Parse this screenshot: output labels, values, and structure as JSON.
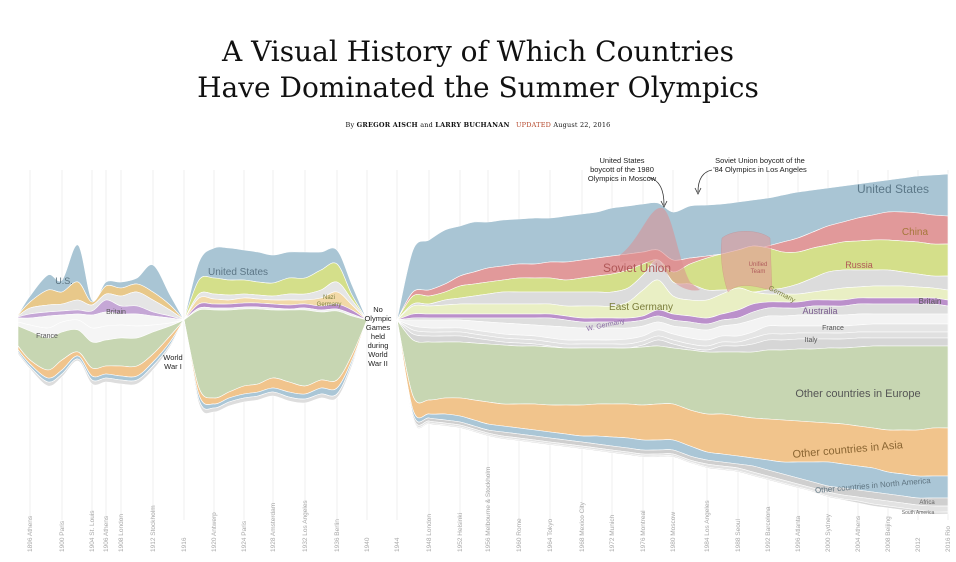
{
  "header": {
    "title_line1": "A Visual History of Which Countries",
    "title_line2": "Have Dominated the Summer Olympics",
    "byline_prefix": "By",
    "author1": "GREGOR AISCH",
    "byline_and": "and",
    "author2": "LARRY BUCHANAN",
    "updated_label": "UPDATED",
    "updated_date": "August 22, 2016"
  },
  "chart_data": {
    "type": "area",
    "title": "A Visual History of Which Countries Have Dominated the Summer Olympics",
    "x": [
      "1896 Athens",
      "1900 Paris",
      "1904 St. Louis",
      "1906 Athens",
      "1908 London",
      "1912 Stockholm",
      "1916",
      "1920 Antwerp",
      "1924 Paris",
      "1928 Amsterdam",
      "1932 Los Angeles",
      "1936 Berlin",
      "1940",
      "1944",
      "1948 London",
      "1952 Helsinki",
      "1956 Melbourne & Stockholm",
      "1960 Rome",
      "1964 Tokyo",
      "1968 Mexico City",
      "1972 Munich",
      "1976 Montreal",
      "1980 Moscow",
      "1984 Los Angeles",
      "1988 Seoul",
      "1992 Barcelona",
      "1996 Atlanta",
      "2000 Sydney",
      "2004 Athens",
      "2008 Beijing",
      "2012",
      "2016 Rio"
    ],
    "series_labels": [
      {
        "name": "U.S.",
        "year": 1896
      },
      {
        "name": "France",
        "year": 1896
      },
      {
        "name": "Britain",
        "year": 1908
      },
      {
        "name": "United States",
        "year": 1920
      },
      {
        "name": "Nazi Germany",
        "year": 1936
      },
      {
        "name": "Soviet Union",
        "year": 1956
      },
      {
        "name": "East Germany",
        "year": 1968
      },
      {
        "name": "W. Germany",
        "year": 1964
      },
      {
        "name": "Unified Team",
        "year": 1992
      },
      {
        "name": "Germany",
        "year": 1992
      },
      {
        "name": "United States",
        "year": 2008
      },
      {
        "name": "China",
        "year": 2012
      },
      {
        "name": "Russia",
        "year": 2000
      },
      {
        "name": "Britain",
        "year": 2016
      },
      {
        "name": "Australia",
        "year": 2004
      },
      {
        "name": "France",
        "year": 2000
      },
      {
        "name": "Italy",
        "year": 2000
      },
      {
        "name": "Other countries in Europe",
        "year": 2004
      },
      {
        "name": "Other countries in Asia",
        "year": 2000
      },
      {
        "name": "Other countries in North America",
        "year": 2000
      },
      {
        "name": "Africa",
        "year": 2016
      },
      {
        "name": "South America",
        "year": 2016
      }
    ],
    "gaps": [
      {
        "year": 1916,
        "label": "World War I"
      },
      {
        "year": 1940,
        "label": "No Olympic Games held during World War II"
      }
    ],
    "annotations": [
      {
        "year": 1980,
        "text": "United States boycott of the 1980 Olympics in Moscow"
      },
      {
        "year": 1984,
        "text": "Soviet Union boycott of the '84 Olympics in Los Angeles"
      }
    ],
    "colors": {
      "usa": "#a9c5d4",
      "britain": "#e5e5e5",
      "france": "#f5f5f5",
      "germany": "#d4df8a",
      "soviet": "#e1999a",
      "china": "#f3cf96",
      "australia": "#bb90cb",
      "italy": "#f0f0f0",
      "europe": "#c7d6b2",
      "asia": "#f1c48c",
      "north_america": "#aac6d6",
      "africa": "#d6d6d6",
      "south_america": "#e6e6e6",
      "annotation_red": "#b5482c"
    },
    "grid": true,
    "legend": "inline"
  }
}
